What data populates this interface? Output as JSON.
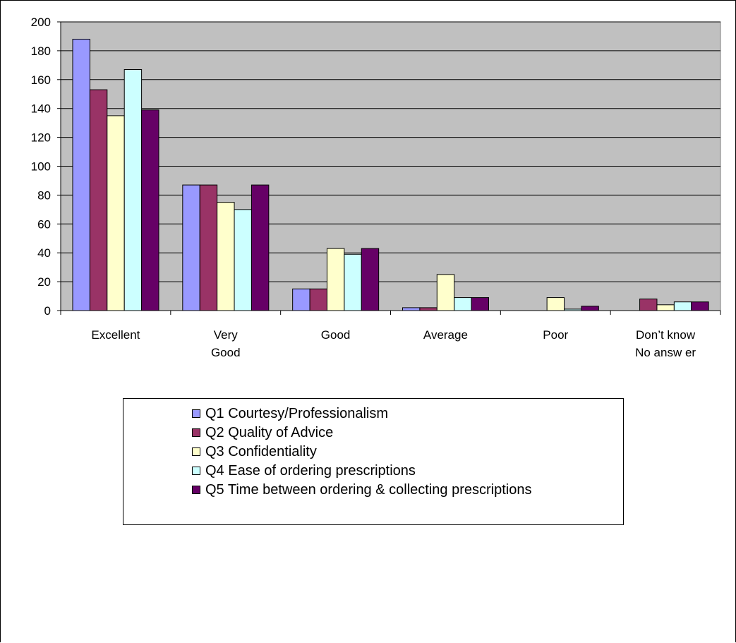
{
  "chart_data": {
    "type": "bar",
    "categories": [
      [
        "Excellent"
      ],
      [
        "Very",
        "Good"
      ],
      [
        "Good"
      ],
      [
        "Average"
      ],
      [
        "Poor"
      ],
      [
        "Don’t know",
        "No answ er"
      ]
    ],
    "series": [
      {
        "name": "Q1 Courtesy/Professionalism",
        "color": "#9999ff",
        "values": [
          188,
          87,
          15,
          2,
          0,
          0
        ]
      },
      {
        "name": "Q2 Quality of Advice",
        "color": "#993366",
        "values": [
          153,
          87,
          15,
          2,
          0,
          8
        ]
      },
      {
        "name": "Q3 Confidentiality",
        "color": "#ffffcc",
        "values": [
          135,
          75,
          43,
          25,
          9,
          4
        ]
      },
      {
        "name": "Q4 Ease of ordering prescriptions",
        "color": "#ccffff",
        "values": [
          167,
          70,
          39,
          9,
          1,
          6
        ]
      },
      {
        "name": "Q5 Time between ordering & collecting prescriptions",
        "color": "#660066",
        "values": [
          139,
          87,
          43,
          9,
          3,
          6
        ]
      }
    ],
    "ylim": [
      0,
      200
    ],
    "yticks": [
      0,
      20,
      40,
      60,
      80,
      100,
      120,
      140,
      160,
      180,
      200
    ],
    "title": "",
    "xlabel": "",
    "ylabel": "",
    "grid": true,
    "plot_background": "#c0c0c0",
    "legend_position": "bottom"
  }
}
